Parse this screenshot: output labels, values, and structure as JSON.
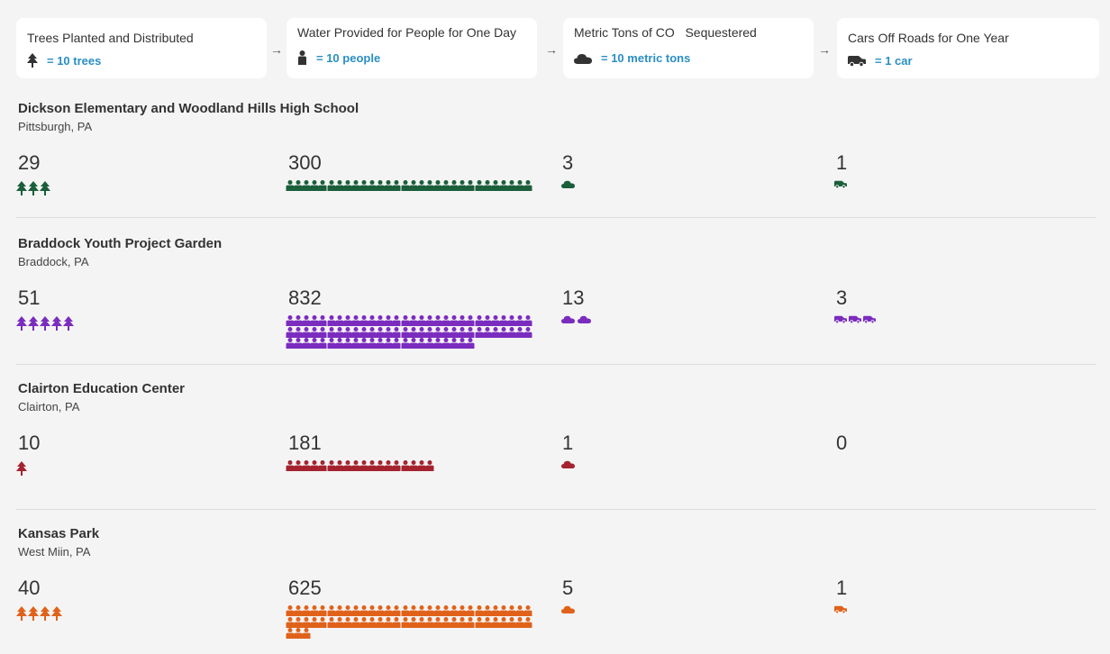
{
  "legend": [
    {
      "title": "Trees Planted and Distributed",
      "unit_text": "= 10 trees",
      "icon": "tree-icon"
    },
    {
      "title": "Water Provided for People for One Day",
      "unit_text": "= 10 people",
      "icon": "person-icon"
    },
    {
      "title": "Metric Tons of CO   Sequestered",
      "unit_text": "= 10 metric tons",
      "icon": "cloud-icon"
    },
    {
      "title": "Cars Off Roads for One Year",
      "unit_text": "= 1 car",
      "icon": "car-icon"
    }
  ],
  "arrow_glyph": "→",
  "sites": [
    {
      "name": "Dickson Elementary and Woodland Hills High School",
      "location": "Pittsburgh, PA",
      "color": "#1b5e3b",
      "metrics": {
        "trees": {
          "value": "29",
          "icons": 3
        },
        "water": {
          "value": "300",
          "icons": 30
        },
        "co2": {
          "value": "3",
          "icons": 1
        },
        "cars": {
          "value": "1",
          "icons": 1
        }
      }
    },
    {
      "name": "Braddock Youth Project Garden",
      "location": "Braddock, PA",
      "color": "#7b2cbf",
      "metrics": {
        "trees": {
          "value": "51",
          "icons": 5
        },
        "water": {
          "value": "832",
          "icons": 83
        },
        "co2": {
          "value": "13",
          "icons": 2
        },
        "cars": {
          "value": "3",
          "icons": 3
        }
      }
    },
    {
      "name": "Clairton Education Center",
      "location": "Clairton, PA",
      "color": "#a4232f",
      "metrics": {
        "trees": {
          "value": "10",
          "icons": 1
        },
        "water": {
          "value": "181",
          "icons": 18
        },
        "co2": {
          "value": "1",
          "icons": 1
        },
        "cars": {
          "value": "0",
          "icons": 0
        }
      }
    },
    {
      "name": "Kansas Park",
      "location": "West Miin, PA",
      "color": "#e0621a",
      "metrics": {
        "trees": {
          "value": "40",
          "icons": 4
        },
        "water": {
          "value": "625",
          "icons": 63
        },
        "co2": {
          "value": "5",
          "icons": 1
        },
        "cars": {
          "value": "1",
          "icons": 1
        }
      }
    }
  ]
}
